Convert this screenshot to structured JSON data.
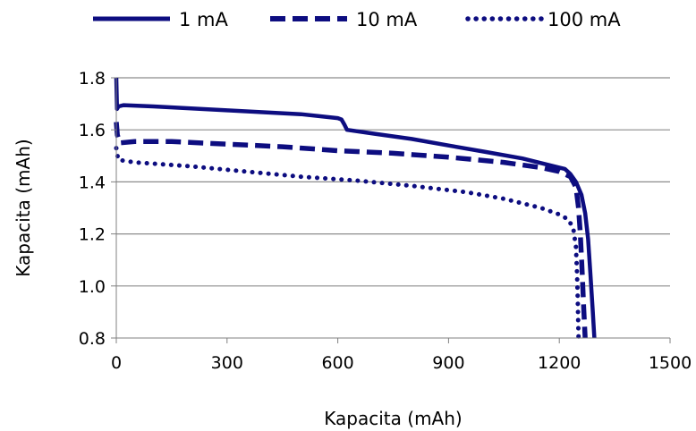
{
  "chart_data": {
    "type": "line",
    "title": "",
    "xlabel": "Kapacita (mAh)",
    "ylabel": "Kapacita (mAh)",
    "xlim": [
      0,
      1500
    ],
    "ylim": [
      0.8,
      1.8
    ],
    "xticks": [
      0,
      300,
      600,
      900,
      1200,
      1500
    ],
    "yticks": [
      0.8,
      1.0,
      1.2,
      1.4,
      1.6,
      1.8
    ],
    "ytick_labels": [
      "0.8",
      "1.0",
      "1.2",
      "1.4",
      "1.6",
      "1.8"
    ],
    "grid": "horizontal",
    "legend_position": "top",
    "color": "#0d0d80",
    "series": [
      {
        "name": "1 mA",
        "style": "solid",
        "points": [
          [
            0,
            1.8
          ],
          [
            2,
            1.68
          ],
          [
            6,
            1.69
          ],
          [
            20,
            1.695
          ],
          [
            100,
            1.69
          ],
          [
            300,
            1.675
          ],
          [
            500,
            1.66
          ],
          [
            600,
            1.645
          ],
          [
            610,
            1.64
          ],
          [
            618,
            1.62
          ],
          [
            625,
            1.6
          ],
          [
            700,
            1.585
          ],
          [
            800,
            1.565
          ],
          [
            900,
            1.54
          ],
          [
            1000,
            1.515
          ],
          [
            1100,
            1.49
          ],
          [
            1200,
            1.455
          ],
          [
            1215,
            1.45
          ],
          [
            1230,
            1.43
          ],
          [
            1245,
            1.4
          ],
          [
            1260,
            1.35
          ],
          [
            1270,
            1.28
          ],
          [
            1278,
            1.18
          ],
          [
            1284,
            1.05
          ],
          [
            1290,
            0.92
          ],
          [
            1295,
            0.8
          ]
        ]
      },
      {
        "name": "10 mA",
        "style": "dashed",
        "points": [
          [
            0,
            1.63
          ],
          [
            3,
            1.58
          ],
          [
            10,
            1.55
          ],
          [
            50,
            1.555
          ],
          [
            150,
            1.555
          ],
          [
            300,
            1.545
          ],
          [
            450,
            1.535
          ],
          [
            600,
            1.52
          ],
          [
            750,
            1.51
          ],
          [
            900,
            1.495
          ],
          [
            1050,
            1.475
          ],
          [
            1150,
            1.455
          ],
          [
            1200,
            1.44
          ],
          [
            1230,
            1.42
          ],
          [
            1245,
            1.38
          ],
          [
            1252,
            1.3
          ],
          [
            1257,
            1.2
          ],
          [
            1262,
            1.05
          ],
          [
            1266,
            0.92
          ],
          [
            1270,
            0.8
          ]
        ]
      },
      {
        "name": "100 mA",
        "style": "dotted",
        "points": [
          [
            0,
            1.53
          ],
          [
            5,
            1.485
          ],
          [
            50,
            1.475
          ],
          [
            200,
            1.46
          ],
          [
            350,
            1.44
          ],
          [
            500,
            1.42
          ],
          [
            650,
            1.405
          ],
          [
            800,
            1.385
          ],
          [
            950,
            1.36
          ],
          [
            1050,
            1.335
          ],
          [
            1150,
            1.3
          ],
          [
            1200,
            1.275
          ],
          [
            1225,
            1.255
          ],
          [
            1238,
            1.22
          ],
          [
            1245,
            1.15
          ],
          [
            1248,
            1.05
          ],
          [
            1250,
            0.95
          ],
          [
            1252,
            0.8
          ]
        ]
      }
    ]
  }
}
